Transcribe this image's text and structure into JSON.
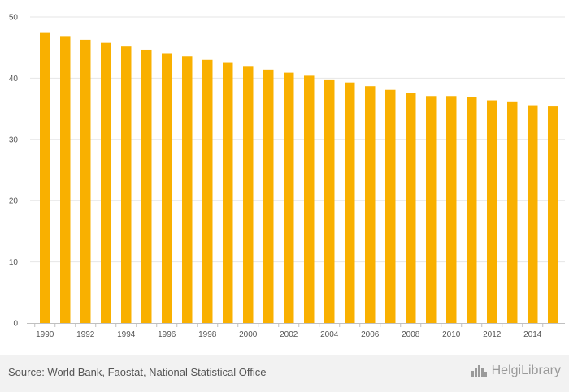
{
  "chart_data": {
    "type": "bar",
    "title": "",
    "xlabel": "",
    "ylabel": "",
    "ylim": [
      0,
      50
    ],
    "yticks": [
      0,
      10,
      20,
      30,
      40,
      50
    ],
    "grid": true,
    "bar_color": "#F9B000",
    "categories": [
      "1990",
      "1991",
      "1992",
      "1993",
      "1994",
      "1995",
      "1996",
      "1997",
      "1998",
      "1999",
      "2000",
      "2001",
      "2002",
      "2003",
      "2004",
      "2005",
      "2006",
      "2007",
      "2008",
      "2009",
      "2010",
      "2011",
      "2012",
      "2013",
      "2014",
      "2015"
    ],
    "x_tick_labels": [
      "1990",
      "",
      "1992",
      "",
      "1994",
      "",
      "1996",
      "",
      "1998",
      "",
      "2000",
      "",
      "2002",
      "",
      "2004",
      "",
      "2006",
      "",
      "2008",
      "",
      "2010",
      "",
      "2012",
      "",
      "2014",
      ""
    ],
    "values": [
      47.4,
      46.9,
      46.3,
      45.8,
      45.2,
      44.7,
      44.1,
      43.6,
      43.0,
      42.5,
      42.0,
      41.4,
      40.9,
      40.4,
      39.8,
      39.3,
      38.7,
      38.1,
      37.6,
      37.1,
      37.1,
      36.9,
      36.4,
      36.1,
      35.6,
      35.4
    ]
  },
  "footer": {
    "source": "Source: World Bank, Faostat, National Statistical Office",
    "brand": "HelgiLibrary",
    "brand_icon": "city-skyline-icon"
  }
}
